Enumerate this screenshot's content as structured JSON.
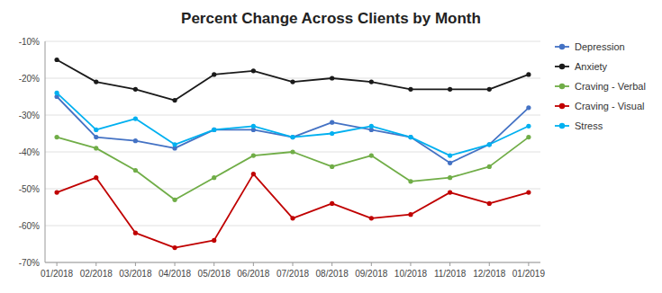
{
  "chart_data": {
    "type": "line",
    "title": "Percent Change Across Clients by Month",
    "categories": [
      "01/2018",
      "02/2018",
      "03/2018",
      "04/2018",
      "05/2018",
      "06/2018",
      "07/2018",
      "08/2018",
      "09/2018",
      "10/2018",
      "11/2018",
      "12/2018",
      "01/2019"
    ],
    "series": [
      {
        "name": "Depression",
        "color": "#4472C4",
        "marker": "circle",
        "values": [
          -25,
          -36,
          -37,
          -39,
          -34,
          -34,
          -36,
          -32,
          -34,
          -36,
          -43,
          -38,
          -28
        ]
      },
      {
        "name": "Anxiety",
        "color": "#1a1a1a",
        "marker": "circle",
        "values": [
          -15,
          -21,
          -23,
          -26,
          -19,
          -18,
          -21,
          -20,
          -21,
          -23,
          -23,
          -23,
          -19
        ]
      },
      {
        "name": "Craving - Verbal",
        "color": "#70AD47",
        "marker": "circle",
        "values": [
          -36,
          -39,
          -45,
          -53,
          -47,
          -41,
          -40,
          -44,
          -41,
          -48,
          -47,
          -44,
          -36
        ]
      },
      {
        "name": "Craving - Visual",
        "color": "#C00000",
        "marker": "circle",
        "values": [
          -51,
          -47,
          -62,
          -66,
          -64,
          -46,
          -58,
          -54,
          -58,
          -57,
          -51,
          -54,
          -51
        ]
      },
      {
        "name": "Stress",
        "color": "#00B0F0",
        "marker": "circle",
        "values": [
          -24,
          -34,
          -31,
          -38,
          -34,
          -33,
          -36,
          -35,
          -33,
          -36,
          -41,
          -38,
          -33
        ]
      }
    ],
    "ylim": [
      -70,
      -10
    ],
    "yticks": [
      {
        "value": -10,
        "label": "-10%"
      },
      {
        "value": -20,
        "label": "-20%"
      },
      {
        "value": -30,
        "label": "-30%"
      },
      {
        "value": -40,
        "label": "-40%"
      },
      {
        "value": -50,
        "label": "-50%"
      },
      {
        "value": -60,
        "label": "-60%"
      },
      {
        "value": -70,
        "label": "-70%"
      }
    ],
    "grid": true,
    "legend": "right"
  }
}
